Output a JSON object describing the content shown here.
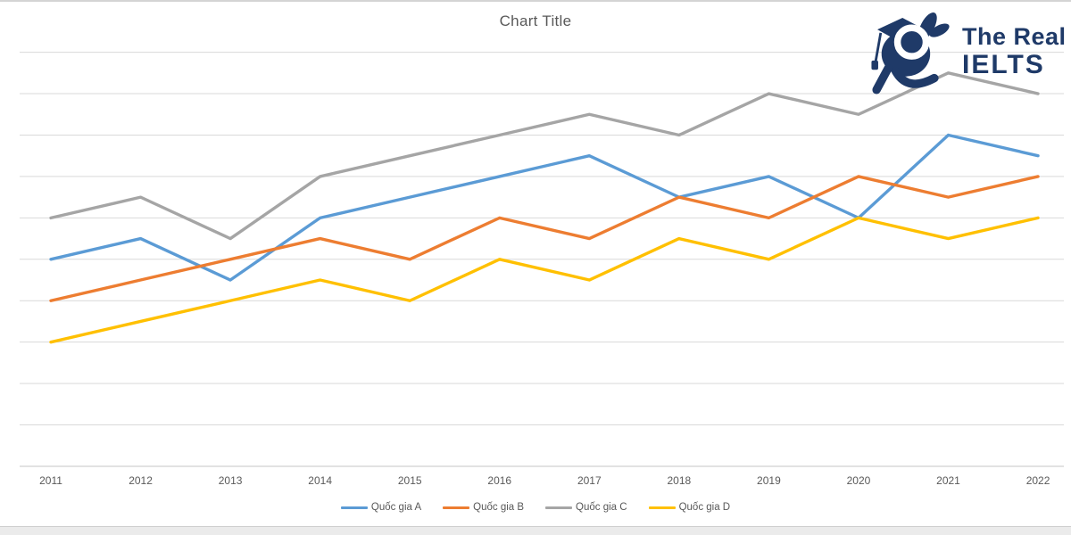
{
  "chart_data": {
    "type": "line",
    "title": "Chart Title",
    "categories": [
      "2011",
      "2012",
      "2013",
      "2014",
      "2015",
      "2016",
      "2017",
      "2018",
      "2019",
      "2020",
      "2021",
      "2022"
    ],
    "series": [
      {
        "name": "Quốc gia A",
        "color": "#5B9BD5",
        "values": [
          50,
          55,
          45,
          60,
          65,
          70,
          75,
          65,
          70,
          60,
          80,
          75
        ]
      },
      {
        "name": "Quốc gia B",
        "color": "#ED7D31",
        "values": [
          40,
          45,
          50,
          55,
          50,
          60,
          55,
          65,
          60,
          70,
          65,
          70
        ]
      },
      {
        "name": "Quốc gia C",
        "color": "#A5A5A5",
        "values": [
          60,
          65,
          55,
          70,
          75,
          80,
          85,
          80,
          90,
          85,
          95,
          90
        ]
      },
      {
        "name": "Quốc gia D",
        "color": "#FFC000",
        "values": [
          30,
          35,
          40,
          45,
          40,
          50,
          45,
          55,
          50,
          60,
          55,
          60
        ]
      }
    ],
    "ylim": [
      0,
      100
    ],
    "grid_step": 10,
    "grid": true,
    "y_axis_labels": "none",
    "legend_position": "bottom",
    "xlabel": "",
    "ylabel": ""
  },
  "colors": {
    "gridline": "#d9d9d9",
    "axis_line": "#c6c6c6",
    "text": "#595959",
    "brand_navy": "#1f3a68"
  },
  "logo": {
    "line1": "The Real",
    "line2": "IELTS"
  }
}
